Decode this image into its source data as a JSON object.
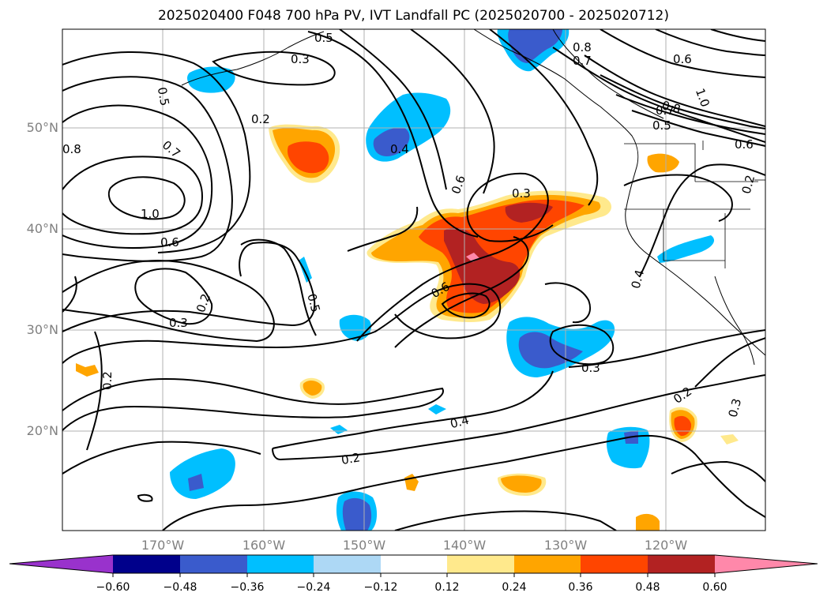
{
  "title": "2025020400 F048 700 hPa PV, IVT Landfall PC (2025020700 - 2025020712)",
  "axes": {
    "lat_labels": [
      "50°N",
      "40°N",
      "30°N",
      "20°N"
    ],
    "lon_labels": [
      "170°W",
      "160°W",
      "150°W",
      "140°W",
      "130°W",
      "120°W"
    ]
  },
  "contour_labels": [
    "0.5",
    "0.3",
    "0.8",
    "0.7",
    "0.6",
    "0.5",
    "0.2",
    "0.4",
    "0.8",
    "0.7",
    "1.0",
    "0.6",
    "0.3",
    "0.6",
    "0.7",
    "0.6",
    "0.5",
    "0.2",
    "0.3",
    "0.3",
    "0.2",
    "0.4",
    "0.2",
    "0.2",
    "0.3",
    "0.4",
    "0.8",
    "0.5",
    "1.0",
    "0.6",
    "0.2"
  ],
  "colorbar": {
    "tick_labels": [
      "−0.60",
      "−0.48",
      "−0.36",
      "−0.24",
      "−0.12",
      "0.12",
      "0.24",
      "0.36",
      "0.48",
      "0.60"
    ],
    "colors": [
      "#9932cc",
      "#00008b",
      "#3a5bcc",
      "#00bfff",
      "#add8f5",
      "#ffffff",
      "#ffe98c",
      "#ffa500",
      "#ff4500",
      "#b22222",
      "#ff88aa"
    ]
  },
  "fill_colors": {
    "neg_strong": "#3a5bcc",
    "neg": "#00bfff",
    "neg_weak": "#add8f5",
    "pos_weak": "#ffe98c",
    "pos": "#ffa500",
    "pos_strong": "#ff4500",
    "pos_vstrong": "#b22222",
    "pos_max": "#ff88aa"
  }
}
